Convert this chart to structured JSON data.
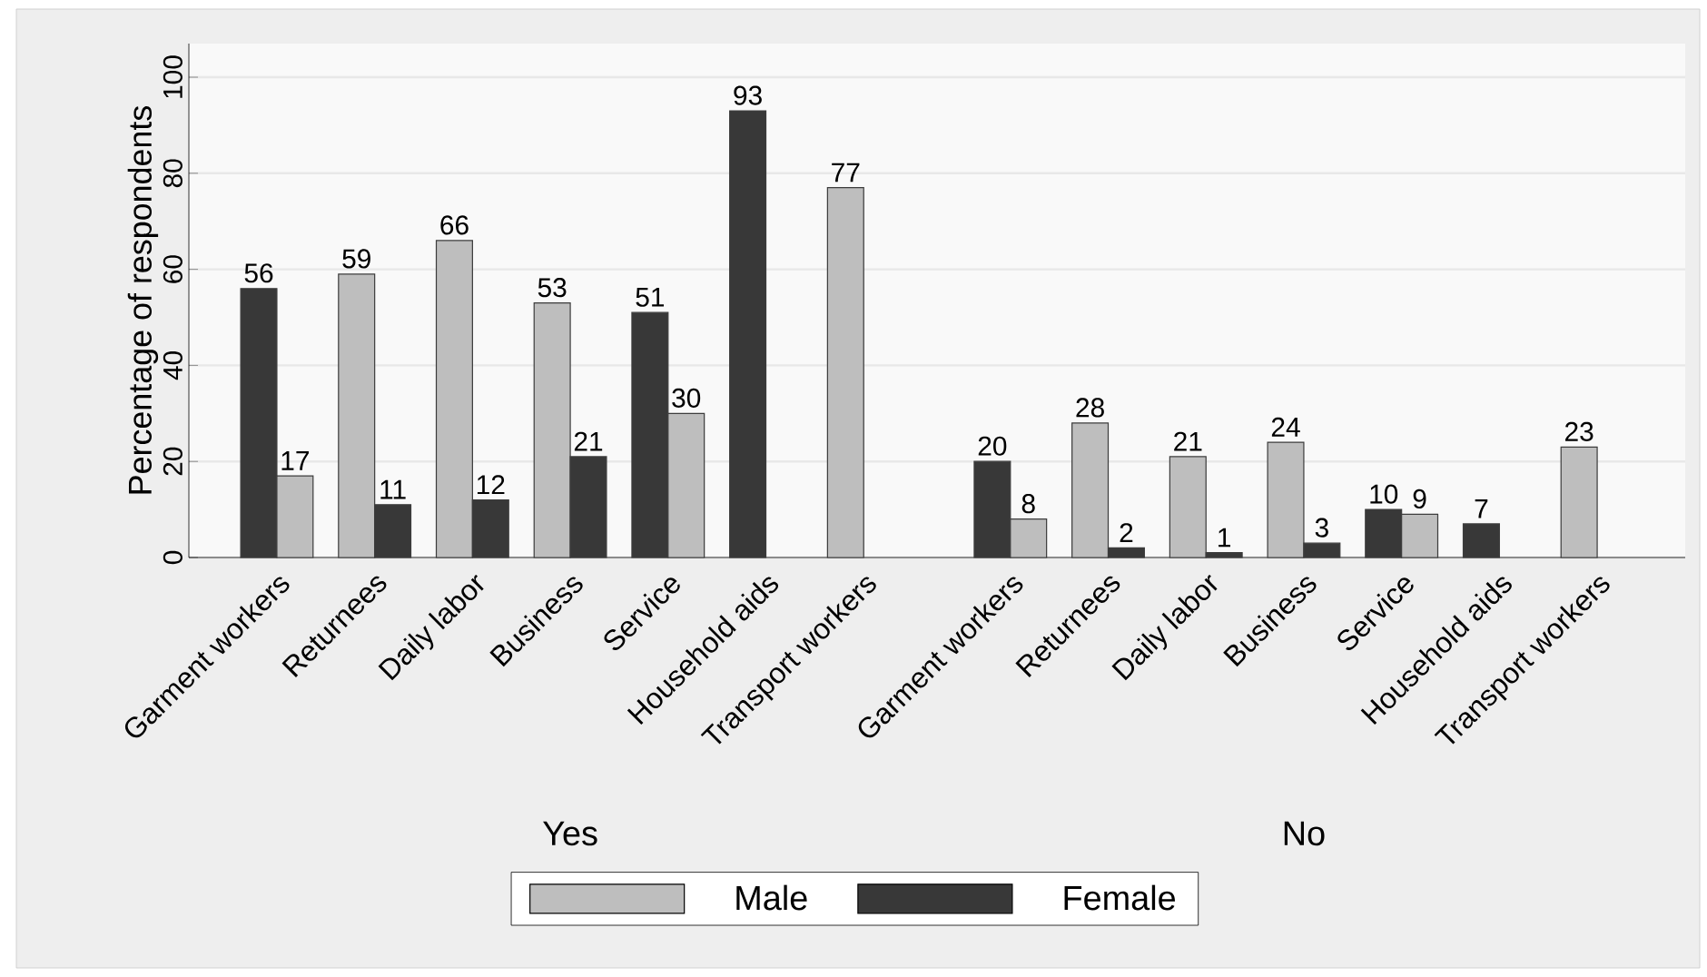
{
  "chart_data": {
    "type": "bar",
    "ylabel": "Percentage of respondents",
    "categories": [
      "Garment workers",
      "Returnees",
      "Daily labor",
      "Business",
      "Service",
      "Household aids",
      "Transport workers",
      "Garment workers",
      "Returnees",
      "Daily labor",
      "Business",
      "Service",
      "Household aids",
      "Transport workers"
    ],
    "series": [
      {
        "name": "Male",
        "color": "#bebebe",
        "values": [
          17,
          59,
          66,
          53,
          30,
          null,
          77,
          8,
          28,
          21,
          24,
          9,
          null,
          23
        ]
      },
      {
        "name": "Female",
        "color": "#383838",
        "values": [
          56,
          11,
          12,
          21,
          51,
          93,
          null,
          20,
          2,
          1,
          3,
          10,
          7,
          null
        ]
      }
    ],
    "annotations": [
      "Yes",
      "No"
    ],
    "ylim": [
      0,
      107
    ],
    "yticks": [
      0,
      20,
      40,
      60,
      80,
      100
    ],
    "grid": "y",
    "data_labels": true,
    "legend": "bottom"
  }
}
